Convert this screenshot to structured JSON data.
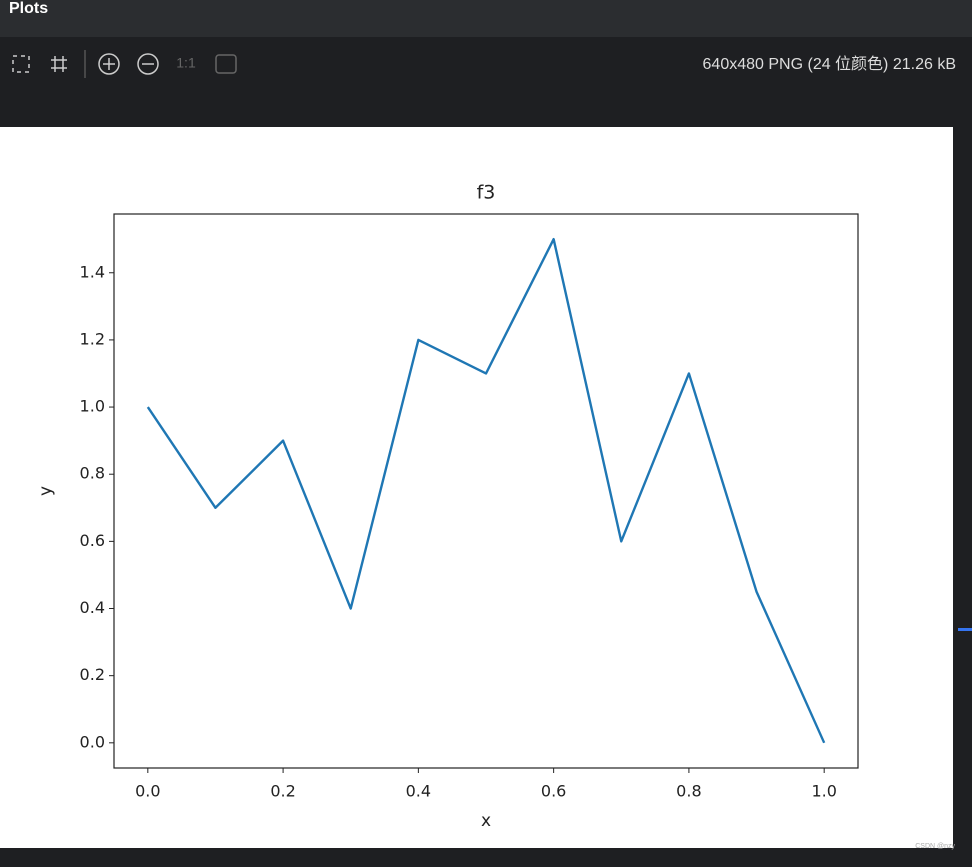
{
  "panel": {
    "title": "Plots",
    "zoom_label": "1:1",
    "image_info": "640x480 PNG (24 位颜色) 21.26 kB"
  },
  "watermark": "CSDN @nzy",
  "chart_data": {
    "type": "line",
    "title": "f3",
    "x_label": "x",
    "y_label": "y",
    "x": [
      0,
      0.1,
      0.2,
      0.3,
      0.4,
      0.5,
      0.6,
      0.7,
      0.8,
      0.9,
      1.0
    ],
    "values": [
      1.0,
      0.7,
      0.9,
      0.4,
      1.2,
      1.1,
      1.5,
      0.6,
      1.1,
      0.45,
      0.0
    ],
    "color": "#1f77b4",
    "xlim": [
      -0.05,
      1.05
    ],
    "xticks": [
      {
        "value": 0,
        "label": "0.0"
      },
      0.2,
      0.4,
      0.6,
      0.8,
      {
        "value": 1,
        "label": "1.0"
      }
    ],
    "ylim": [
      -0.075,
      1.575
    ],
    "yticks": [
      {
        "value": 0,
        "label": "0.0"
      },
      0.2,
      0.4,
      0.6,
      0.8,
      {
        "value": 1,
        "label": "1.0"
      },
      1.2,
      1.4
    ],
    "grid": false
  }
}
